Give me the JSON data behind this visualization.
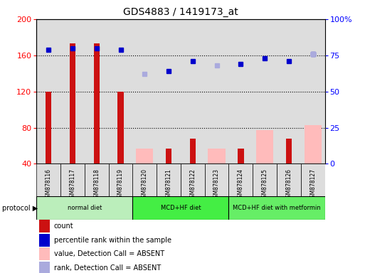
{
  "title": "GDS4883 / 1419173_at",
  "samples": [
    "GSM878116",
    "GSM878117",
    "GSM878118",
    "GSM878119",
    "GSM878120",
    "GSM878121",
    "GSM878122",
    "GSM878123",
    "GSM878124",
    "GSM878125",
    "GSM878126",
    "GSM878127"
  ],
  "count_values": [
    120,
    173,
    173,
    120,
    null,
    57,
    68,
    null,
    57,
    null,
    68,
    null
  ],
  "absent_value_bars": [
    null,
    null,
    null,
    null,
    57,
    null,
    null,
    57,
    null,
    77,
    null,
    83
  ],
  "percentile_rank": [
    79,
    80,
    80,
    79,
    null,
    64,
    71,
    null,
    69,
    73,
    71,
    76
  ],
  "absent_rank": [
    null,
    null,
    null,
    null,
    62,
    null,
    null,
    68,
    null,
    null,
    null,
    76
  ],
  "ylim_left": [
    40,
    200
  ],
  "ylim_right": [
    0,
    100
  ],
  "yticks_left": [
    40,
    80,
    120,
    160,
    200
  ],
  "yticks_right": [
    0,
    25,
    50,
    75,
    100
  ],
  "protocols": [
    {
      "label": "normal diet",
      "start": 0,
      "end": 4,
      "color": "#aaf0aa"
    },
    {
      "label": "MCD+HF diet",
      "start": 4,
      "end": 8,
      "color": "#44ee44"
    },
    {
      "label": "MCD+HF diet with metformin",
      "start": 8,
      "end": 12,
      "color": "#55ee55"
    }
  ],
  "bar_width": 0.45,
  "count_color": "#cc1111",
  "absent_value_color": "#ffbbbb",
  "percentile_color": "#0000cc",
  "absent_rank_color": "#aaaadd",
  "bg_color": "#ffffff",
  "plot_bg": "#ffffff",
  "col_bg": "#dddddd",
  "legend_items": [
    {
      "label": "count",
      "color": "#cc1111"
    },
    {
      "label": "percentile rank within the sample",
      "color": "#0000cc"
    },
    {
      "label": "value, Detection Call = ABSENT",
      "color": "#ffbbbb"
    },
    {
      "label": "rank, Detection Call = ABSENT",
      "color": "#aaaadd"
    }
  ]
}
